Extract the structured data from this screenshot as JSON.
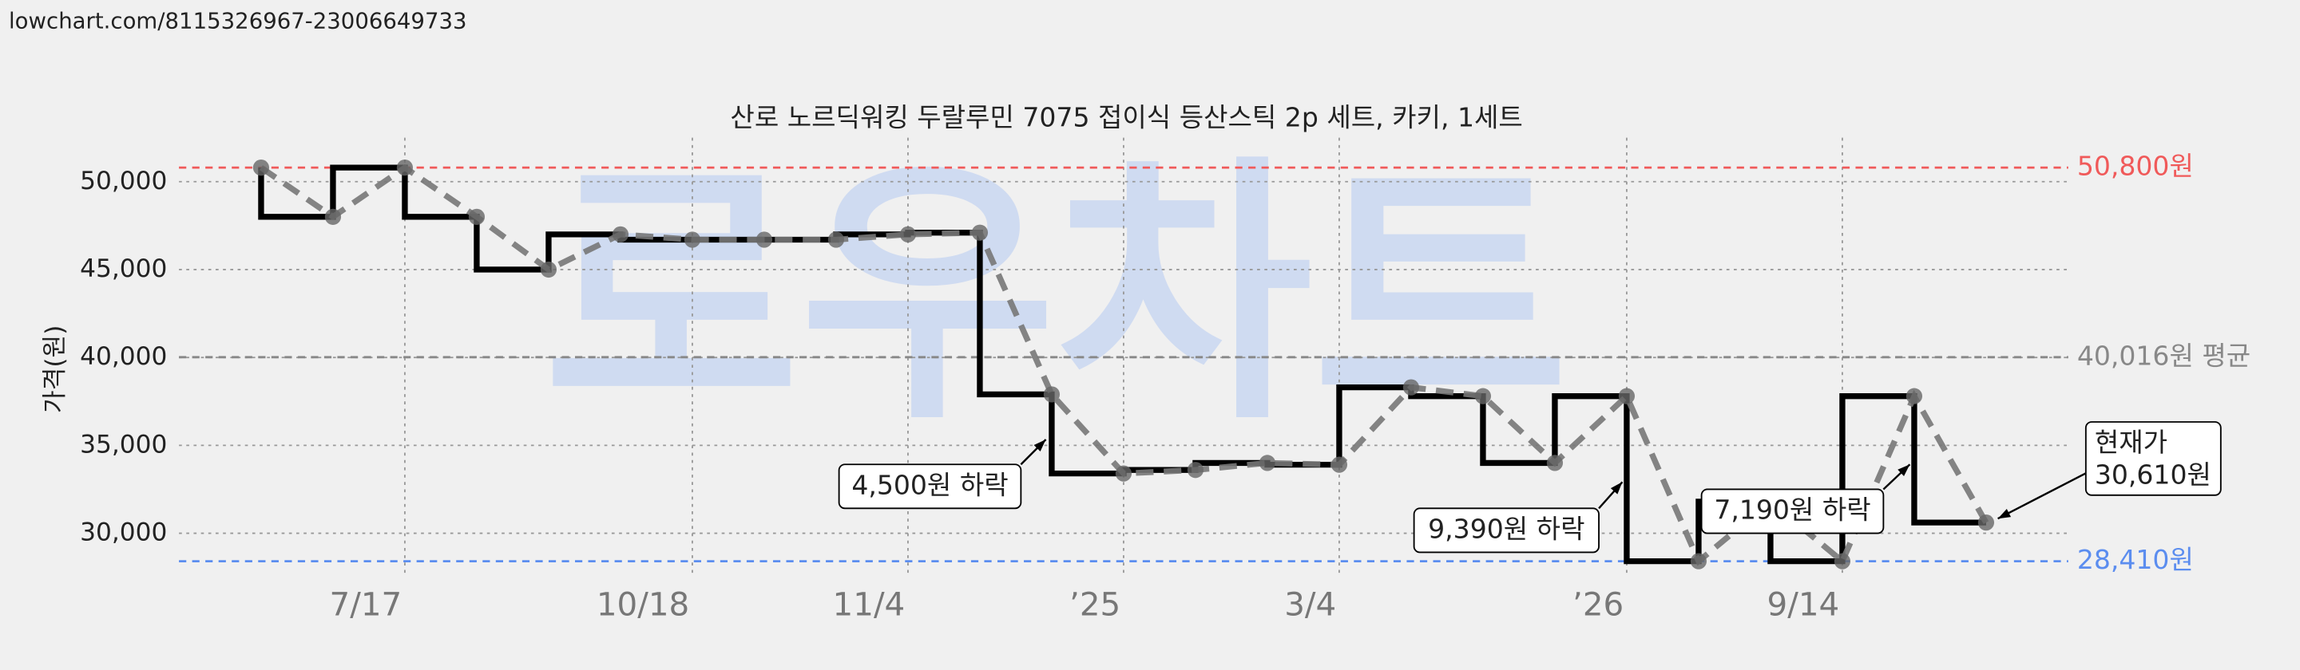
{
  "source_url": "lowchart.com/8115326967-23006649733",
  "chart_data": {
    "type": "line",
    "title": "산로 노르딕워킹 두랄루민 7075 접이식 등산스틱 2p 세트, 카키, 1세트",
    "y_label": "가격(원)",
    "watermark": "로우차트",
    "categories": [
      null,
      null,
      "7/17",
      null,
      null,
      null,
      "10/18",
      null,
      null,
      "11/4",
      null,
      null,
      "’25",
      null,
      null,
      "3/4",
      null,
      null,
      null,
      "’26",
      null,
      null,
      "9/14",
      null,
      null
    ],
    "values": [
      50800,
      48000,
      50800,
      48000,
      45000,
      47000,
      46700,
      46700,
      46700,
      47000,
      47100,
      37900,
      33400,
      33600,
      34000,
      33900,
      38300,
      37800,
      34000,
      37800,
      28410,
      31800,
      28410,
      37800,
      30610
    ],
    "color": "#000000",
    "dash_color": "#777777",
    "ylim": [
      27500,
      52500
    ],
    "yticks": [
      {
        "value": 30000,
        "label": "30,000"
      },
      {
        "value": 35000,
        "label": "35,000"
      },
      {
        "value": 40000,
        "label": "40,000"
      },
      {
        "value": 45000,
        "label": "45,000"
      },
      {
        "value": 50000,
        "label": "50,000"
      }
    ],
    "grid": true,
    "reference_lines": [
      {
        "value": 50800,
        "label": "50,800원",
        "color": "#f05a5a"
      },
      {
        "value": 40016,
        "label": "40,016원 평균",
        "color": "#888888"
      },
      {
        "value": 28410,
        "label": "28,410원",
        "color": "#5b8def"
      }
    ],
    "annotations": [
      {
        "lines": [
          "4,500원 하락"
        ]
      },
      {
        "lines": [
          "9,390원 하락"
        ]
      },
      {
        "lines": [
          "7,190원 하락"
        ]
      },
      {
        "lines": [
          "현재가",
          "30,610원"
        ]
      }
    ]
  }
}
